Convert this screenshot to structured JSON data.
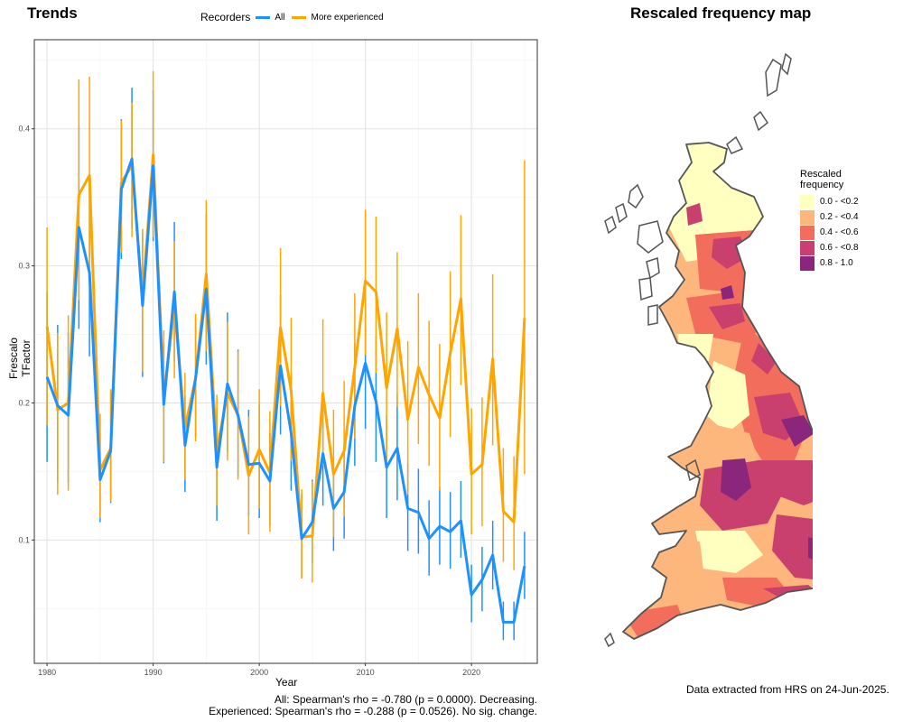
{
  "trends": {
    "title": "Trends",
    "legend_title": "Recorders",
    "stats": {
      "all": "All: Spearman's rho = -0.780 (p = 0.0000). Decreasing.",
      "experienced": "Experienced: Spearman's rho = -0.288 (p = 0.0526). No sig. change."
    }
  },
  "map": {
    "title": "Rescaled frequency map",
    "legend_title_line1": "Rescaled",
    "legend_title_line2": "frequency",
    "classes": [
      {
        "label": "0.0 - <0.2",
        "color": "#ffffc0"
      },
      {
        "label": "0.2 - <0.4",
        "color": "#fdb67c"
      },
      {
        "label": "0.4 - <0.6",
        "color": "#f26d5b"
      },
      {
        "label": "0.6 - <0.8",
        "color": "#c9406e"
      },
      {
        "label": "0.8 - 1.0",
        "color": "#8a267c"
      }
    ]
  },
  "footer": "Data extracted from HRS on 24-Jun-2025.",
  "chart_data": {
    "type": "line",
    "xlabel": "Year",
    "ylabel": "Frescalo TFactor",
    "xlim": [
      1978.8,
      2026.2
    ],
    "ylim": [
      0.01,
      0.465
    ],
    "xticks": [
      1980,
      1990,
      2000,
      2010,
      2020
    ],
    "yticks": [
      0.1,
      0.2,
      0.3,
      0.4
    ],
    "grid": true,
    "legend_position": "top",
    "x": [
      1980,
      1981,
      1982,
      1983,
      1984,
      1985,
      1986,
      1987,
      1988,
      1989,
      1990,
      1991,
      1992,
      1993,
      1994,
      1995,
      1996,
      1997,
      1998,
      1999,
      2000,
      2001,
      2002,
      2003,
      2004,
      2005,
      2006,
      2007,
      2008,
      2009,
      2010,
      2011,
      2012,
      2013,
      2014,
      2015,
      2016,
      2017,
      2018,
      2019,
      2020,
      2021,
      2022,
      2023,
      2024,
      2025
    ],
    "series": [
      {
        "name": "All",
        "color": "#1e90ff",
        "values": [
          0.219,
          0.198,
          0.191,
          0.328,
          0.295,
          0.144,
          0.165,
          0.356,
          0.378,
          0.271,
          0.373,
          0.199,
          0.281,
          0.169,
          0.218,
          0.283,
          0.153,
          0.214,
          0.191,
          0.155,
          0.156,
          0.143,
          0.227,
          0.178,
          0.101,
          0.113,
          0.163,
          0.123,
          0.135,
          0.198,
          0.229,
          0.201,
          0.153,
          0.167,
          0.123,
          0.12,
          0.101,
          0.11,
          0.106,
          0.114,
          0.06,
          0.071,
          0.089,
          0.04,
          0.04,
          0.081
        ],
        "lower": [
          0.157,
          0.142,
          0.142,
          0.254,
          0.234,
          0.113,
          0.127,
          0.305,
          0.327,
          0.219,
          0.318,
          0.156,
          0.23,
          0.135,
          0.175,
          0.228,
          0.114,
          0.164,
          0.146,
          0.118,
          0.116,
          0.11,
          0.177,
          0.136,
          0.072,
          0.083,
          0.125,
          0.092,
          0.101,
          0.154,
          0.181,
          0.157,
          0.116,
          0.129,
          0.092,
          0.09,
          0.074,
          0.082,
          0.079,
          0.087,
          0.04,
          0.048,
          0.064,
          0.027,
          0.027,
          0.057
        ],
        "upper": [
          0.281,
          0.257,
          0.251,
          0.402,
          0.358,
          0.178,
          0.208,
          0.407,
          0.43,
          0.324,
          0.428,
          0.244,
          0.332,
          0.205,
          0.262,
          0.338,
          0.196,
          0.266,
          0.239,
          0.195,
          0.199,
          0.178,
          0.279,
          0.222,
          0.134,
          0.144,
          0.203,
          0.156,
          0.171,
          0.244,
          0.277,
          0.249,
          0.191,
          0.207,
          0.156,
          0.152,
          0.129,
          0.139,
          0.135,
          0.143,
          0.082,
          0.095,
          0.114,
          0.055,
          0.055,
          0.106
        ]
      },
      {
        "name": "More experienced",
        "color": "#ffa500",
        "values": [
          0.256,
          0.195,
          0.2,
          0.352,
          0.366,
          0.151,
          0.167,
          0.361,
          0.373,
          0.276,
          0.381,
          0.205,
          0.27,
          0.182,
          0.218,
          0.294,
          0.165,
          0.207,
          0.191,
          0.147,
          0.166,
          0.149,
          0.255,
          0.209,
          0.102,
          0.103,
          0.207,
          0.148,
          0.165,
          0.226,
          0.289,
          0.281,
          0.211,
          0.254,
          0.188,
          0.226,
          0.206,
          0.189,
          0.236,
          0.276,
          0.148,
          0.155,
          0.232,
          0.121,
          0.113,
          0.262
        ],
        "lower": [
          0.184,
          0.133,
          0.136,
          0.275,
          0.294,
          0.116,
          0.128,
          0.31,
          0.321,
          0.223,
          0.321,
          0.157,
          0.218,
          0.144,
          0.172,
          0.238,
          0.125,
          0.158,
          0.144,
          0.104,
          0.123,
          0.106,
          0.198,
          0.158,
          0.072,
          0.069,
          0.154,
          0.102,
          0.117,
          0.174,
          0.235,
          0.222,
          0.155,
          0.197,
          0.133,
          0.17,
          0.154,
          0.136,
          0.175,
          0.213,
          0.104,
          0.11,
          0.169,
          0.084,
          0.078,
          0.148
        ],
        "upper": [
          0.328,
          0.251,
          0.264,
          0.436,
          0.438,
          0.192,
          0.21,
          0.406,
          0.419,
          0.327,
          0.442,
          0.253,
          0.318,
          0.222,
          0.265,
          0.348,
          0.206,
          0.259,
          0.238,
          0.19,
          0.21,
          0.194,
          0.313,
          0.262,
          0.137,
          0.143,
          0.261,
          0.195,
          0.216,
          0.28,
          0.341,
          0.336,
          0.266,
          0.31,
          0.245,
          0.28,
          0.26,
          0.243,
          0.296,
          0.337,
          0.196,
          0.204,
          0.294,
          0.167,
          0.161,
          0.377
        ]
      }
    ]
  }
}
